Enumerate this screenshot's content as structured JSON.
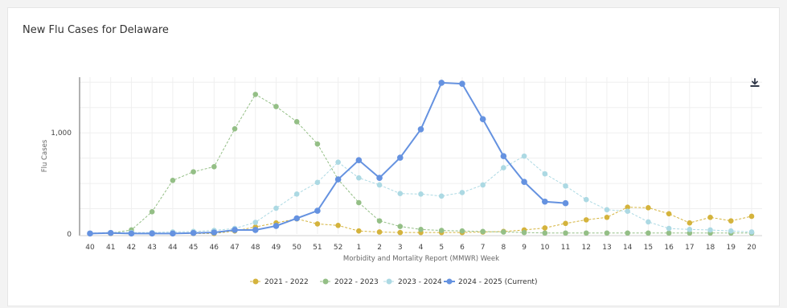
{
  "page": {
    "title": "New Flu Cases for Delaware"
  },
  "toolbar": {
    "download_icon": "download-icon"
  },
  "chart_data": {
    "type": "line",
    "title": "New Flu Cases for Delaware",
    "xlabel": "Morbidity and Mortality Report (MMWR) Week",
    "ylabel": "Flu Cases",
    "ylim": [
      0,
      1550
    ],
    "yticks": [
      0,
      1000
    ],
    "ytick_labels": [
      "0",
      "1,000"
    ],
    "grid": true,
    "legend_position": "bottom-center",
    "categories": [
      "40",
      "41",
      "42",
      "43",
      "44",
      "45",
      "46",
      "47",
      "48",
      "49",
      "50",
      "51",
      "52",
      "1",
      "2",
      "3",
      "4",
      "5",
      "6",
      "7",
      "8",
      "9",
      "10",
      "11",
      "12",
      "13",
      "14",
      "15",
      "16",
      "17",
      "18",
      "19",
      "20"
    ],
    "series": [
      {
        "name": "2021 - 2022",
        "color": "#d4b33c",
        "dashed": true,
        "values": [
          5,
          5,
          5,
          5,
          5,
          5,
          5,
          30,
          70,
          110,
          150,
          100,
          85,
          30,
          20,
          15,
          15,
          15,
          15,
          20,
          25,
          40,
          60,
          105,
          140,
          165,
          265,
          260,
          200,
          110,
          165,
          130,
          175
        ]
      },
      {
        "name": "2022 - 2023",
        "color": "#94bf86",
        "dashed": true,
        "values": [
          5,
          10,
          40,
          220,
          530,
          615,
          665,
          1040,
          1380,
          1260,
          1110,
          890,
          540,
          310,
          130,
          75,
          45,
          35,
          30,
          25,
          20,
          15,
          10,
          10,
          10,
          10,
          10,
          10,
          10,
          10,
          10,
          10,
          10
        ]
      },
      {
        "name": "2023 - 2024",
        "color": "#acd9e3",
        "dashed": true,
        "values": [
          10,
          15,
          15,
          15,
          20,
          25,
          35,
          55,
          115,
          255,
          395,
          510,
          710,
          555,
          485,
          400,
          395,
          375,
          410,
          485,
          655,
          770,
          595,
          475,
          340,
          240,
          225,
          120,
          55,
          45,
          40,
          30,
          20
        ]
      },
      {
        "name": "2024 - 2025 (Current)",
        "color": "#6592e0",
        "dashed": false,
        "values": [
          5,
          10,
          5,
          5,
          5,
          10,
          15,
          40,
          40,
          80,
          155,
          230,
          540,
          730,
          555,
          755,
          1035,
          1495,
          1485,
          1135,
          770,
          515,
          320,
          305,
          null,
          null,
          null,
          null,
          null,
          null,
          null,
          null,
          null
        ]
      }
    ]
  }
}
